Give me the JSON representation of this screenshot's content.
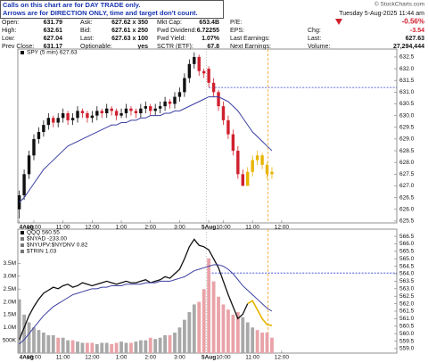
{
  "header": {
    "notice": [
      "Calls on this chart are for DAY TRADE only.",
      "Arrows are for DIRECTION ONLY, time and target don't count."
    ],
    "rows": [
      [
        "Open:",
        "631.79",
        "Ask:",
        "627.62 x 350",
        "Mkt Cap:",
        "653.4B",
        "P/E:"
      ],
      [
        "High:",
        "632.61",
        "Bid:",
        "627.61 x 250",
        "Fwd Dividend:",
        "6.72255",
        "EPS:"
      ],
      [
        "Low:",
        "627.04",
        "Last:",
        "627.63 x 100",
        "Fwd Yield:",
        "1.07%",
        "Last Earnings:"
      ],
      [
        "Prev Close:",
        "631.17",
        "Optionable:",
        "yes",
        "SCTR (ETF):",
        "67.8",
        "Next Earnings:"
      ]
    ],
    "date": "Tuesday  5-Aug-2025  11:44 am",
    "change_pct": "-0.56%",
    "stats": [
      [
        "Chg:",
        "-3.54"
      ],
      [
        "Last:",
        "627.63"
      ],
      [
        "Volume:",
        "27,294,444"
      ]
    ],
    "source": "© StockCharts.com"
  },
  "chart_data": [
    {
      "type": "candlestick",
      "legend": [
        "SPY (5 min) 627.63"
      ],
      "xlim": [
        -0.3,
        77.7
      ],
      "xticks": [
        {
          "value": 0,
          "label": "4Aug"
        },
        {
          "value": 3,
          "label": "10:00"
        },
        {
          "value": 9,
          "label": "11:00"
        },
        {
          "value": 15,
          "label": "12:00"
        },
        {
          "value": 21,
          "label": "1:00"
        },
        {
          "value": 27,
          "label": "2:00"
        },
        {
          "value": 33,
          "label": "3:00"
        },
        {
          "value": 39,
          "label": "5Aug"
        },
        {
          "value": 42,
          "label": "10:00"
        },
        {
          "value": 48,
          "label": "11:00"
        },
        {
          "value": 54,
          "label": "12:00"
        }
      ],
      "ylim": [
        625.42,
        632.84
      ],
      "yticks": [
        625.5,
        {
          "value": 626,
          "label": "626.0"
        },
        626.5,
        {
          "value": 627,
          "label": "627.0"
        },
        627.5,
        {
          "value": 628,
          "label": "628.0"
        },
        628.5,
        {
          "value": 629,
          "label": "629.0"
        },
        629.5,
        {
          "value": 630,
          "label": "630.0"
        },
        630.5,
        {
          "value": 631,
          "label": "631.0"
        },
        631.5,
        {
          "value": 632,
          "label": "632.0"
        },
        632.5
      ],
      "open": [
        626.0,
        626.6,
        627.5,
        628.3,
        629.0,
        629.3,
        629.6,
        629.9,
        629.7,
        629.9,
        630.1,
        629.8,
        629.9,
        630.2,
        630.1,
        629.9,
        630.0,
        630.2,
        630.1,
        630.3,
        630.2,
        630.0,
        630.1,
        630.3,
        630.2,
        630.1,
        630.3,
        630.4,
        630.2,
        630.3,
        630.4,
        630.6,
        630.5,
        630.8,
        631.0,
        631.6,
        632.2,
        632.5,
        631.9,
        632.0,
        631.4,
        631.0,
        630.4,
        629.8,
        629.2,
        628.5,
        627.5,
        627.0,
        627.6,
        628.1,
        628.3,
        627.9,
        627.5
      ],
      "high": [
        626.8,
        627.7,
        628.5,
        629.2,
        629.5,
        629.8,
        630.1,
        630.0,
        630.1,
        630.3,
        630.2,
        630.1,
        630.4,
        630.3,
        630.2,
        630.2,
        630.4,
        630.3,
        630.5,
        630.4,
        630.3,
        630.3,
        630.5,
        630.4,
        630.3,
        630.5,
        630.6,
        630.5,
        630.5,
        630.6,
        630.8,
        630.7,
        631.0,
        631.2,
        631.8,
        632.4,
        632.7,
        632.6,
        632.0,
        632.1,
        631.6,
        631.1,
        630.6,
        630.0,
        629.4,
        628.7,
        627.7,
        627.8,
        628.3,
        628.5,
        628.4,
        628.0,
        627.8
      ],
      "low": [
        625.6,
        626.4,
        627.3,
        628.1,
        628.8,
        629.1,
        629.4,
        629.5,
        629.5,
        629.7,
        629.6,
        629.6,
        629.7,
        629.9,
        629.7,
        629.7,
        629.8,
        629.9,
        629.9,
        630.0,
        629.8,
        629.9,
        629.9,
        630.0,
        629.9,
        629.9,
        630.1,
        630.0,
        630.0,
        630.1,
        630.2,
        630.3,
        630.3,
        630.6,
        630.8,
        631.4,
        632.0,
        631.7,
        631.6,
        631.2,
        630.8,
        630.2,
        629.6,
        629.0,
        628.3,
        627.3,
        627.0,
        627.0,
        627.4,
        627.9,
        627.7,
        627.3,
        627.3
      ],
      "close": [
        626.6,
        627.5,
        628.3,
        629.0,
        629.3,
        629.6,
        629.9,
        629.7,
        629.9,
        630.1,
        629.8,
        629.9,
        630.2,
        630.1,
        629.9,
        630.0,
        630.2,
        630.1,
        630.3,
        630.2,
        630.0,
        630.1,
        630.3,
        630.2,
        630.1,
        630.3,
        630.4,
        630.2,
        630.3,
        630.4,
        630.6,
        630.5,
        630.8,
        631.0,
        631.6,
        632.2,
        632.5,
        631.9,
        631.8,
        631.4,
        631.0,
        630.4,
        629.8,
        629.2,
        628.5,
        627.5,
        627.0,
        627.6,
        628.1,
        628.3,
        627.9,
        627.5,
        627.6
      ],
      "ma": [
        626.3,
        626.5,
        626.8,
        627.1,
        627.4,
        627.7,
        627.9,
        628.1,
        628.3,
        628.5,
        628.7,
        628.8,
        628.9,
        629.0,
        629.1,
        629.2,
        629.3,
        629.4,
        629.5,
        629.6,
        629.6,
        629.7,
        629.7,
        629.8,
        629.8,
        629.9,
        629.9,
        630.0,
        630.0,
        630.0,
        630.1,
        630.1,
        630.2,
        630.2,
        630.3,
        630.4,
        630.5,
        630.6,
        630.7,
        630.8,
        630.8,
        630.8,
        630.7,
        630.6,
        630.4,
        630.2,
        629.9,
        629.6,
        629.3,
        629.1,
        628.9,
        628.7,
        628.5
      ],
      "up_color": "#111111",
      "down_color": "#d0202e",
      "ma_color": "#3b3fa0",
      "highlight_start": 47,
      "highlight_color": "#e8b400",
      "hline": 631.2,
      "vline": 51.2,
      "vline_color": "#f0a020"
    },
    {
      "type": "line",
      "legend": [
        "QQQ 560.55",
        "$NYAD -233.00",
        "$NYUPV:$NYDNV 0.82",
        "$TRIN 1.03"
      ],
      "xlim": [
        -0.3,
        77.7
      ],
      "xticks": [
        {
          "value": 0,
          "label": "4Aug"
        },
        {
          "value": 3,
          "label": "10:00"
        },
        {
          "value": 9,
          "label": "11:00"
        },
        {
          "value": 15,
          "label": "12:00"
        },
        {
          "value": 21,
          "label": "1:00"
        },
        {
          "value": 27,
          "label": "2:00"
        },
        {
          "value": 33,
          "label": "3:00"
        },
        {
          "value": 39,
          "label": "5Aug"
        },
        {
          "value": 42,
          "label": "10:00"
        },
        {
          "value": 48,
          "label": "11:00"
        },
        {
          "value": 54,
          "label": "12:00"
        }
      ],
      "ylim": [
        558.7,
        566.98
      ],
      "yticks": [
        {
          "value": 559,
          "label": "559.0"
        },
        559.5,
        {
          "value": 560,
          "label": "560.0"
        },
        560.5,
        {
          "value": 561,
          "label": "561.0"
        },
        561.5,
        {
          "value": 562,
          "label": "562.0"
        },
        562.5,
        {
          "value": 563,
          "label": "563.0"
        },
        563.5,
        {
          "value": 564,
          "label": "564.0"
        },
        564.5,
        {
          "value": 565,
          "label": "565.0"
        },
        565.5,
        {
          "value": 566,
          "label": "566.0"
        },
        566.5
      ],
      "values": [
        559.6,
        560.4,
        561.2,
        561.8,
        562.3,
        562.7,
        562.9,
        563.1,
        563.0,
        563.2,
        563.3,
        563.1,
        563.2,
        563.4,
        563.3,
        563.2,
        563.3,
        563.4,
        563.5,
        563.4,
        563.3,
        563.4,
        563.5,
        563.4,
        563.4,
        563.5,
        563.6,
        563.4,
        563.5,
        563.6,
        563.8,
        563.7,
        564.0,
        564.3,
        565.0,
        565.8,
        566.3,
        565.9,
        565.8,
        565.6,
        565.0,
        564.4,
        563.5,
        562.6,
        561.8,
        561.0,
        561.3,
        562.0,
        562.2,
        561.6,
        561.0,
        560.6,
        560.55
      ],
      "ma": [
        559.3,
        559.6,
        560.0,
        560.4,
        560.8,
        561.2,
        561.5,
        561.8,
        562.0,
        562.2,
        562.4,
        562.6,
        562.7,
        562.8,
        562.9,
        563.0,
        563.0,
        563.1,
        563.1,
        563.2,
        563.2,
        563.2,
        563.3,
        563.3,
        563.3,
        563.3,
        563.4,
        563.4,
        563.4,
        563.5,
        563.5,
        563.5,
        563.6,
        563.7,
        563.8,
        564.0,
        564.2,
        564.3,
        564.4,
        564.5,
        564.6,
        564.6,
        564.5,
        564.3,
        564.0,
        563.6,
        563.2,
        562.9,
        562.6,
        562.3,
        562.0,
        561.7,
        561.5
      ],
      "volume": [
        2100000,
        1500000,
        1200000,
        1000000,
        900000,
        800000,
        700000,
        700000,
        600000,
        600000,
        500000,
        500000,
        450000,
        400000,
        400000,
        400000,
        350000,
        400000,
        400000,
        350000,
        400000,
        450000,
        400000,
        400000,
        450000,
        500000,
        500000,
        600000,
        550000,
        600000,
        700000,
        700000,
        800000,
        1000000,
        1300000,
        1600000,
        1900000,
        2000000,
        2500000,
        3700000,
        2800000,
        2200000,
        1900000,
        1700000,
        1500000,
        1600000,
        1400000,
        1200000,
        1000000,
        900000,
        800000,
        800000,
        600000
      ],
      "vlim": [
        0,
        4840000
      ],
      "vticks": [
        {
          "value": 500000,
          "label": "500K"
        },
        {
          "value": 1000000,
          "label": "1.0M"
        },
        {
          "value": 1500000,
          "label": "1.5M"
        },
        {
          "value": 2000000,
          "label": "2.0M"
        },
        {
          "value": 2500000,
          "label": "2.5M"
        },
        {
          "value": 3000000,
          "label": "3.0M"
        },
        {
          "value": 3500000,
          "label": "3.5M"
        }
      ],
      "color": "#111111",
      "ma_color": "#3b3fa0",
      "volume_color": "#a8a8a8",
      "volume_down_color": "#e9a3a8",
      "highlight_start": 47,
      "highlight_color": "#e8b400",
      "hline": 564.05,
      "vline": 51.2,
      "vline_color": "#f0a020"
    }
  ]
}
